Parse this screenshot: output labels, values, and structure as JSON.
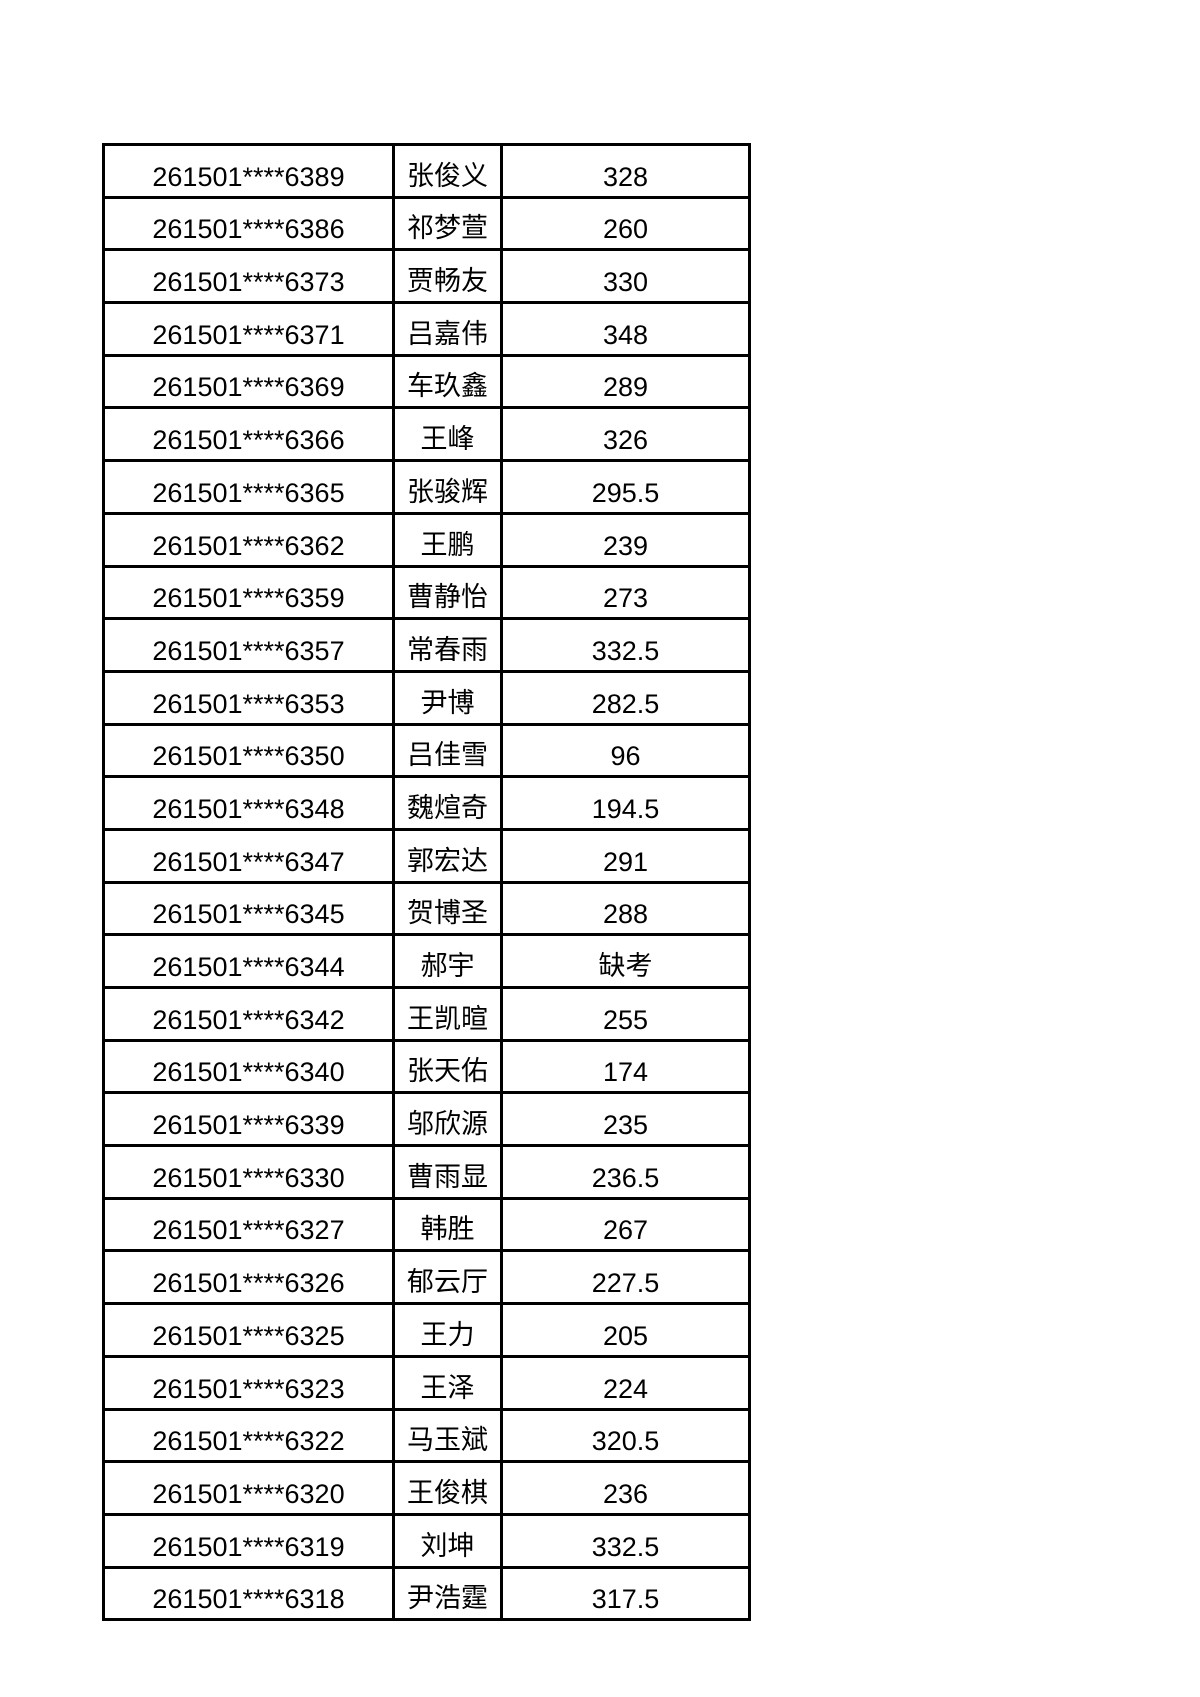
{
  "page": {
    "background_color": "#ffffff",
    "table_border_color": "#000000",
    "text_color": "#000000"
  },
  "table": {
    "description": "exam-score-list",
    "rows": [
      {
        "id": "261501****6389",
        "name": "张俊义",
        "score": "328"
      },
      {
        "id": "261501****6386",
        "name": "祁梦萱",
        "score": "260"
      },
      {
        "id": "261501****6373",
        "name": "贾畅友",
        "score": "330"
      },
      {
        "id": "261501****6371",
        "name": "吕嘉伟",
        "score": "348"
      },
      {
        "id": "261501****6369",
        "name": "车玖鑫",
        "score": "289"
      },
      {
        "id": "261501****6366",
        "name": "王峰",
        "score": "326"
      },
      {
        "id": "261501****6365",
        "name": "张骏辉",
        "score": "295.5"
      },
      {
        "id": "261501****6362",
        "name": "王鹏",
        "score": "239"
      },
      {
        "id": "261501****6359",
        "name": "曹静怡",
        "score": "273"
      },
      {
        "id": "261501****6357",
        "name": "常春雨",
        "score": "332.5"
      },
      {
        "id": "261501****6353",
        "name": "尹博",
        "score": "282.5"
      },
      {
        "id": "261501****6350",
        "name": "吕佳雪",
        "score": "96"
      },
      {
        "id": "261501****6348",
        "name": "魏煊奇",
        "score": "194.5"
      },
      {
        "id": "261501****6347",
        "name": "郭宏达",
        "score": "291"
      },
      {
        "id": "261501****6345",
        "name": "贺博圣",
        "score": "288"
      },
      {
        "id": "261501****6344",
        "name": "郝宇",
        "score": "缺考"
      },
      {
        "id": "261501****6342",
        "name": "王凯暄",
        "score": "255"
      },
      {
        "id": "261501****6340",
        "name": "张天佑",
        "score": "174"
      },
      {
        "id": "261501****6339",
        "name": "邬欣源",
        "score": "235"
      },
      {
        "id": "261501****6330",
        "name": "曹雨显",
        "score": "236.5"
      },
      {
        "id": "261501****6327",
        "name": "韩胜",
        "score": "267"
      },
      {
        "id": "261501****6326",
        "name": "郁云厅",
        "score": "227.5"
      },
      {
        "id": "261501****6325",
        "name": "王力",
        "score": "205"
      },
      {
        "id": "261501****6323",
        "name": "王泽",
        "score": "224"
      },
      {
        "id": "261501****6322",
        "name": "马玉斌",
        "score": "320.5"
      },
      {
        "id": "261501****6320",
        "name": "王俊棋",
        "score": "236"
      },
      {
        "id": "261501****6319",
        "name": "刘坤",
        "score": "332.5"
      },
      {
        "id": "261501****6318",
        "name": "尹浩霆",
        "score": "317.5"
      }
    ]
  }
}
